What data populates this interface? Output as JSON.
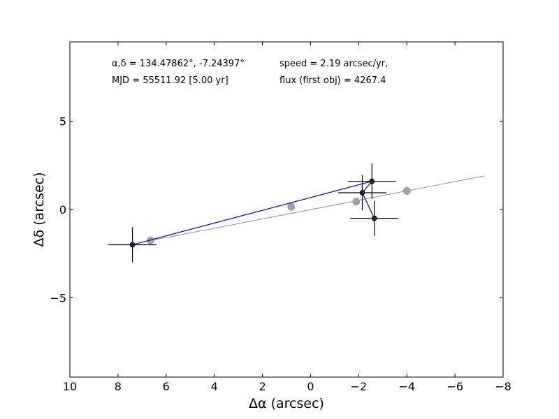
{
  "chart_data": {
    "type": "scatter",
    "xlabel": "Δα (arcsec)",
    "ylabel": "Δδ (arcsec)",
    "xlim": [
      10,
      -8
    ],
    "ylim": [
      -9.5,
      9.5
    ],
    "x_ticks": [
      10,
      8,
      6,
      4,
      2,
      0,
      -2,
      -4,
      -6,
      -8
    ],
    "y_ticks": [
      5,
      0,
      -5
    ],
    "x_tick_labels": [
      "10",
      "8",
      "6",
      "4",
      "2",
      "0",
      "−2",
      "−4",
      "−6",
      "−8"
    ],
    "y_tick_labels": [
      "5",
      "0",
      "−5"
    ],
    "grid": false,
    "annotations": [
      {
        "text": "α,δ = 134.47862°, -7.24397°"
      },
      {
        "text": "MJD = 55511.92 [5.00 yr]"
      },
      {
        "text": "speed = 2.19 arcsec/yr,"
      },
      {
        "text": "flux (first obj) = 4267.4"
      }
    ],
    "observed": {
      "color": "#0000cc",
      "marker_color": "#222222",
      "x": [
        7.4,
        -2.55,
        -2.15,
        -2.65
      ],
      "y": [
        -2.0,
        1.6,
        0.95,
        -0.5
      ],
      "xerr": [
        1.0,
        1.0,
        1.0,
        1.0
      ],
      "yerr": [
        1.0,
        1.0,
        1.0,
        1.0
      ]
    },
    "model": {
      "color": "#a0a0a0",
      "line_x": [
        6.6,
        -7.2
      ],
      "line_y": [
        -1.75,
        1.9
      ],
      "points_x": [
        6.65,
        0.8,
        -1.9,
        -4.0
      ],
      "points_y": [
        -1.75,
        0.15,
        0.45,
        1.05
      ]
    }
  }
}
